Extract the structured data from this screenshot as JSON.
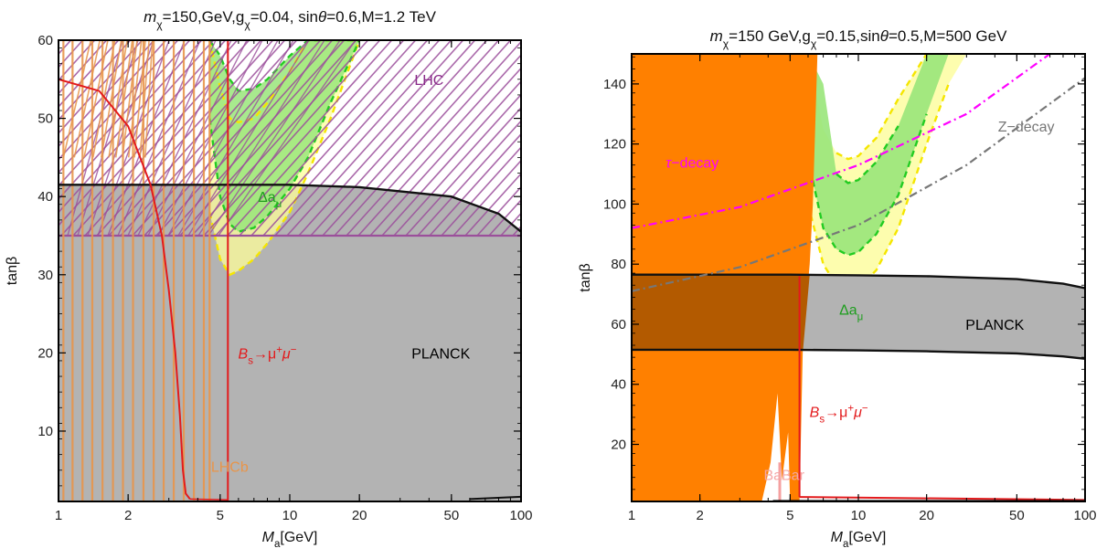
{
  "chart_data": [
    {
      "type": "area",
      "title": "mχ=150,GeV,gχ=0.04, sinθ=0.6,M=1.2 TeV",
      "title_parts": [
        "m",
        "χ",
        "=150,GeV,g",
        "χ",
        "=0.04, sin",
        "θ",
        "=0.6,M=1.2 TeV"
      ],
      "xlabel": "Ma[GeV]",
      "xlabel_parts": [
        "M",
        "a",
        "[GeV]"
      ],
      "ylabel": "tanβ",
      "xscale": "log",
      "xlim": [
        1,
        100
      ],
      "ylim": [
        1,
        60
      ],
      "xticks": [
        1,
        2,
        5,
        10,
        20,
        50,
        100
      ],
      "xtick_labels": [
        "1",
        "2",
        "5",
        "10",
        "20",
        "50",
        "100"
      ],
      "yticks": [
        10,
        20,
        30,
        40,
        50,
        60
      ],
      "ytick_labels": [
        "10",
        "20",
        "30",
        "40",
        "50",
        "60"
      ],
      "grid": false,
      "labels": {
        "planck": "PLANCK",
        "lhc": "LHC",
        "lhcb": "LHCb",
        "bsmumu": "Bs→μ+μ−",
        "bsmumu_parts": [
          "B",
          "s",
          "→μ",
          "+",
          "μ",
          "−"
        ],
        "delta_amu": "Δaμ",
        "delta_amu_parts": [
          "Δa",
          "μ"
        ]
      },
      "regions": {
        "planck": {
          "color": "#b3b3b3",
          "x": [
            1,
            5,
            10,
            20,
            50,
            80,
            100
          ],
          "y_upper": [
            41.5,
            41.5,
            41.5,
            41.2,
            40.0,
            37.8,
            35.5
          ]
        },
        "lhc": {
          "color": "#9b4f9b",
          "hatch": "diagonal",
          "boundary_y": 35
        },
        "lhcb": {
          "color": "#e8954a",
          "x_max": 4.5,
          "line_x": [
            1.05,
            1.15,
            1.27,
            1.4,
            1.55,
            1.72,
            1.9,
            2.1,
            2.33,
            2.58,
            2.85,
            3.15,
            3.48,
            3.85,
            4.25,
            4.5
          ]
        },
        "bsmumu": {
          "color": "#e31a1c",
          "x": [
            1,
            1.5,
            2,
            2.5,
            2.8,
            3.0,
            3.2,
            3.35,
            3.45,
            3.55,
            3.7
          ],
          "y": [
            55,
            53.5,
            49,
            41.5,
            35,
            28,
            20,
            12,
            5,
            2,
            1.3
          ],
          "line_x": 5.4
        },
        "delta_amu": {
          "x": [
            4.5,
            5,
            5.5,
            6,
            7,
            8,
            10,
            12,
            15,
            20
          ],
          "yellow": {
            "color": "#fdfd9a",
            "lower": [
              38,
              32,
              30,
              30.5,
              32,
              34,
              38,
              43,
              50,
              60
            ],
            "upper": [
              60,
              54,
              50,
              49.5,
              50,
              52,
              56,
              60,
              60,
              60
            ]
          },
          "green": {
            "color": "#99e67a",
            "lower": [
              50,
              40,
              36.5,
              35.5,
              36,
              37.5,
              41,
              45,
              52,
              60
            ],
            "upper": [
              60,
              58,
              55,
              53.5,
              53.8,
              55,
              58,
              60,
              60,
              60
            ]
          }
        }
      }
    },
    {
      "type": "area",
      "title": "mχ=150 GeV,gχ=0.15,sinθ=0.5,M=500 GeV",
      "title_parts": [
        "m",
        "χ",
        "=150 GeV,g",
        "χ",
        "=0.15,sin",
        "θ",
        "=0.5,M=500 GeV"
      ],
      "xlabel": "Ma[GeV]",
      "xlabel_parts": [
        "M",
        "a",
        "[GeV]"
      ],
      "ylabel": "tanβ",
      "xscale": "log",
      "xlim": [
        1,
        100
      ],
      "ylim": [
        1,
        150
      ],
      "xticks": [
        1,
        2,
        5,
        10,
        20,
        50,
        100
      ],
      "xtick_labels": [
        "1",
        "2",
        "5",
        "10",
        "20",
        "50",
        "100"
      ],
      "yticks": [
        20,
        40,
        60,
        80,
        100,
        120,
        140
      ],
      "ytick_labels": [
        "20",
        "40",
        "60",
        "80",
        "100",
        "120",
        "140"
      ],
      "grid": false,
      "labels": {
        "planck": "PLANCK",
        "tau": "τ−decay",
        "tau_parts": [
          "τ",
          "−decay"
        ],
        "z": "Z−decay",
        "bsmumu": "Bs→μ+μ−",
        "bsmumu_parts": [
          "B",
          "s",
          "→μ",
          "+",
          "μ",
          "−"
        ],
        "babar": "BaBar",
        "delta_amu": "Δaμ",
        "delta_amu_parts": [
          "Δa",
          "μ"
        ]
      },
      "regions": {
        "planck": {
          "color": "#b3b3b3",
          "x": [
            1,
            5,
            10,
            20,
            50,
            80,
            100
          ],
          "y_upper": [
            76.5,
            76.5,
            76.3,
            76.0,
            75.0,
            73.5,
            72.0
          ],
          "y_lower": [
            51.5,
            51.5,
            51.3,
            51.0,
            50.3,
            49.3,
            48.5
          ]
        },
        "orange": {
          "color": "#ff8000",
          "x": [
            1,
            2,
            3,
            3.5,
            3.8,
            4.0,
            4.2,
            4.5,
            4.8,
            5.0,
            5.3,
            5.6,
            5.9,
            6.0,
            6.3,
            6.5,
            6.6
          ],
          "y_lower": [
            1,
            1,
            1,
            1,
            4,
            15,
            35,
            40,
            25,
            10,
            2,
            1,
            1,
            1,
            1,
            1,
            1
          ],
          "y_upper": [
            150,
            150,
            150,
            150,
            150,
            150,
            150,
            150,
            150,
            150,
            150,
            150,
            150,
            150,
            150,
            150,
            150
          ],
          "x_right_at_top": 6.6
        },
        "babar": {
          "color": "#f5a0a0",
          "x": 4.5
        },
        "tau": {
          "color": "#ff00ff",
          "x": [
            1,
            3,
            10,
            30,
            70
          ],
          "y": [
            92,
            99,
            113,
            130,
            150
          ]
        },
        "z": {
          "color": "#777777",
          "x": [
            1,
            3,
            10,
            30,
            100
          ],
          "y": [
            71,
            79,
            93,
            113,
            142
          ]
        },
        "bsmumu": {
          "color": "#e31a1c",
          "line_x": 5.5,
          "floor_y": 2.5
        },
        "delta_amu": {
          "x": [
            5.4,
            6,
            7,
            8,
            9,
            10,
            12,
            15,
            20,
            25,
            30
          ],
          "yellow": {
            "color": "#fdfd9a",
            "lower": [
              150,
              100,
              80,
              73,
              71,
              72,
              78,
              92,
              120,
              140,
              150
            ],
            "upper": [
              150,
              150,
              125,
              117,
              115,
              116,
              122,
              135,
              150,
              150,
              150
            ]
          },
          "green": {
            "color": "#99e67a",
            "lower": [
              150,
              115,
              92,
              85,
              83,
              84,
              90,
              103,
              130,
              150,
              150
            ],
            "upper": [
              150,
              150,
              140,
              110,
              107,
              108,
              114,
              126,
              150,
              150,
              150
            ]
          }
        }
      }
    }
  ]
}
